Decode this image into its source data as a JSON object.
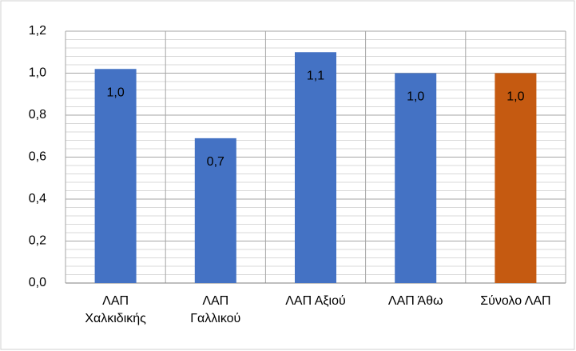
{
  "chart_data": {
    "type": "bar",
    "categories": [
      "ΛΑΠ\nΧαλκιδικής",
      "ΛΑΠ\nΓαλλικού",
      "ΛΑΠ Αξιού",
      "ΛΑΠ Άθω",
      "Σύνολο ΛΑΠ"
    ],
    "values": [
      1.02,
      0.69,
      1.1,
      1.0,
      1.0
    ],
    "value_labels": [
      "1,0",
      "0,7",
      "1,1",
      "1,0",
      "1,0"
    ],
    "colors": [
      "#4472c4",
      "#4472c4",
      "#4472c4",
      "#4472c4",
      "#c55a11"
    ],
    "ylim": [
      0,
      1.2
    ],
    "yticks": [
      {
        "value": 0,
        "label": "0,0"
      },
      {
        "value": 0.2,
        "label": "0,2"
      },
      {
        "value": 0.4,
        "label": "0,4"
      },
      {
        "value": 0.6,
        "label": "0,6"
      },
      {
        "value": 0.8,
        "label": "0,8"
      },
      {
        "value": 1.0,
        "label": "1,0"
      },
      {
        "value": 1.2,
        "label": "1,2"
      }
    ],
    "grid": true
  }
}
